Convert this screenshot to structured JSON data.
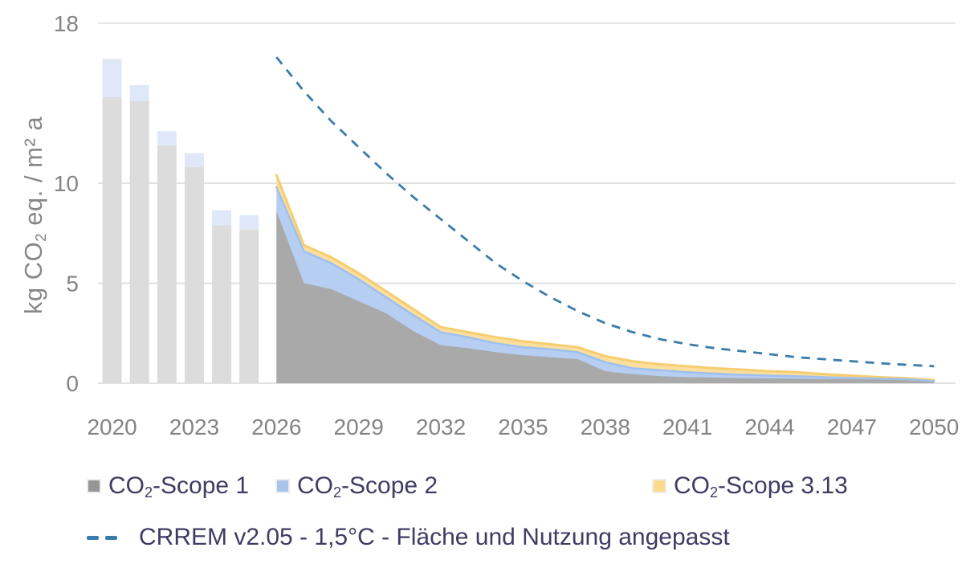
{
  "colors": {
    "bar_scope1": "#dcdcdc",
    "bar_scope2": "#dfe8f8",
    "area_scope1": "#a9a9a9",
    "area_scope2": "#b5cef2",
    "area_scope2_edge": "#9fc0ed",
    "area_scope3": "#fcdf9d",
    "area_scope3_edge": "#f6cd70",
    "crrem_line": "#3a7cab",
    "grid": "#d8d8d8",
    "axis_text": "#848484",
    "legend_text": "#3e3c63",
    "legend_scope1": "#969696",
    "legend_scope2": "#a9c6ea",
    "legend_scope3": "#fbd98b"
  },
  "y_axis_title": {
    "pre": "kg CO",
    "sub": "2",
    "post": " eq. / m² a"
  },
  "legend": {
    "items": [
      {
        "prefix": "CO",
        "sub": "2",
        "rest": "-Scope 1"
      },
      {
        "prefix": "CO",
        "sub": "2",
        "rest": "-Scope 2"
      },
      {
        "prefix": "CO",
        "sub": "2",
        "rest": "-Scope 3.13"
      }
    ],
    "line_item": "CRREM v2.05 - 1,5°C - Fläche und Nutzung angepasst"
  },
  "chart_data": {
    "type": "combo (stacked bars 2020-2025, stacked area 2026-2050, dashed target line)",
    "ylabel": "kg CO2 eq. / m² a",
    "ylim": [
      0,
      18.6
    ],
    "xlim": [
      2019.5,
      2050.5
    ],
    "grid": "horizontal only",
    "legend_position": "bottom-left, two rows",
    "y_ticks": [
      0,
      5,
      10,
      18
    ],
    "x_ticks": [
      2020,
      2023,
      2026,
      2029,
      2032,
      2035,
      2038,
      2041,
      2044,
      2047,
      2050
    ],
    "bars": {
      "years": [
        2020,
        2021,
        2022,
        2023,
        2024,
        2025
      ],
      "series": [
        {
          "name": "CO2-Scope 1 (historical)",
          "values": [
            14.3,
            14.1,
            11.9,
            10.8,
            7.9,
            7.7
          ]
        },
        {
          "name": "CO2-Scope 2 (historical)",
          "values": [
            1.9,
            0.8,
            0.7,
            0.7,
            0.75,
            0.7
          ]
        }
      ]
    },
    "areas": {
      "years": [
        2026,
        2027,
        2028,
        2029,
        2030,
        2031,
        2032,
        2033,
        2034,
        2035,
        2036,
        2037,
        2038,
        2039,
        2040,
        2041,
        2042,
        2043,
        2044,
        2045,
        2046,
        2047,
        2048,
        2049,
        2050
      ],
      "series": [
        {
          "name": "CO2-Scope 1",
          "values": [
            8.6,
            5.0,
            4.7,
            4.1,
            3.5,
            2.6,
            1.9,
            1.75,
            1.55,
            1.4,
            1.3,
            1.2,
            0.6,
            0.45,
            0.35,
            0.3,
            0.28,
            0.25,
            0.24,
            0.23,
            0.21,
            0.2,
            0.18,
            0.15,
            0.05
          ]
        },
        {
          "name": "CO2-Scope 2",
          "values": [
            1.2,
            1.6,
            1.3,
            1.1,
            0.8,
            0.8,
            0.65,
            0.55,
            0.45,
            0.4,
            0.4,
            0.35,
            0.45,
            0.3,
            0.3,
            0.25,
            0.2,
            0.17,
            0.14,
            0.12,
            0.09,
            0.06,
            0.05,
            0.05,
            0.05
          ]
        },
        {
          "name": "CO2-Scope 3.13",
          "values": [
            0.6,
            0.3,
            0.3,
            0.3,
            0.3,
            0.3,
            0.25,
            0.25,
            0.3,
            0.3,
            0.25,
            0.25,
            0.3,
            0.35,
            0.3,
            0.3,
            0.27,
            0.26,
            0.22,
            0.2,
            0.15,
            0.12,
            0.07,
            0.05,
            0.05
          ]
        }
      ]
    },
    "crrem": {
      "name": "CRREM v2.05 - 1,5°C - Fläche und Nutzung angepasst",
      "years": [
        2026,
        2027,
        2028,
        2029,
        2030,
        2031,
        2032,
        2033,
        2034,
        2035,
        2036,
        2037,
        2038,
        2039,
        2040,
        2041,
        2042,
        2043,
        2044,
        2045,
        2046,
        2047,
        2048,
        2049,
        2050
      ],
      "values": [
        16.3,
        14.6,
        13.1,
        11.8,
        10.5,
        9.3,
        8.2,
        7.1,
        6.0,
        5.1,
        4.3,
        3.6,
        3.0,
        2.55,
        2.2,
        1.95,
        1.75,
        1.6,
        1.45,
        1.3,
        1.2,
        1.1,
        1.0,
        0.92,
        0.85
      ]
    }
  }
}
